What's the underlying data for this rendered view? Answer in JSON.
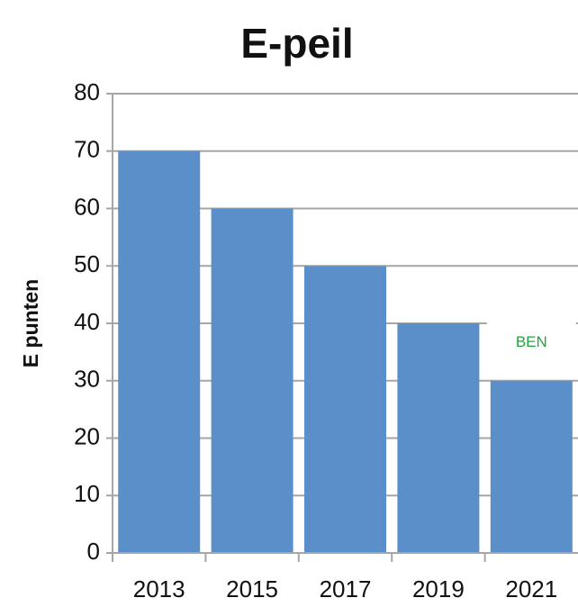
{
  "chart_data": {
    "type": "bar",
    "title": "E-peil",
    "y_label": "E punten",
    "categories": [
      "2013",
      "2015",
      "2017",
      "2019",
      "2021"
    ],
    "values": [
      70,
      60,
      50,
      40,
      30
    ],
    "color": "#5b8fc9",
    "ylim": [
      0,
      80
    ],
    "yticks": [
      0,
      10,
      20,
      30,
      40,
      50,
      60,
      70,
      80
    ],
    "grid": true,
    "annotation": "BEN",
    "annotation_color": "#22a33a"
  }
}
